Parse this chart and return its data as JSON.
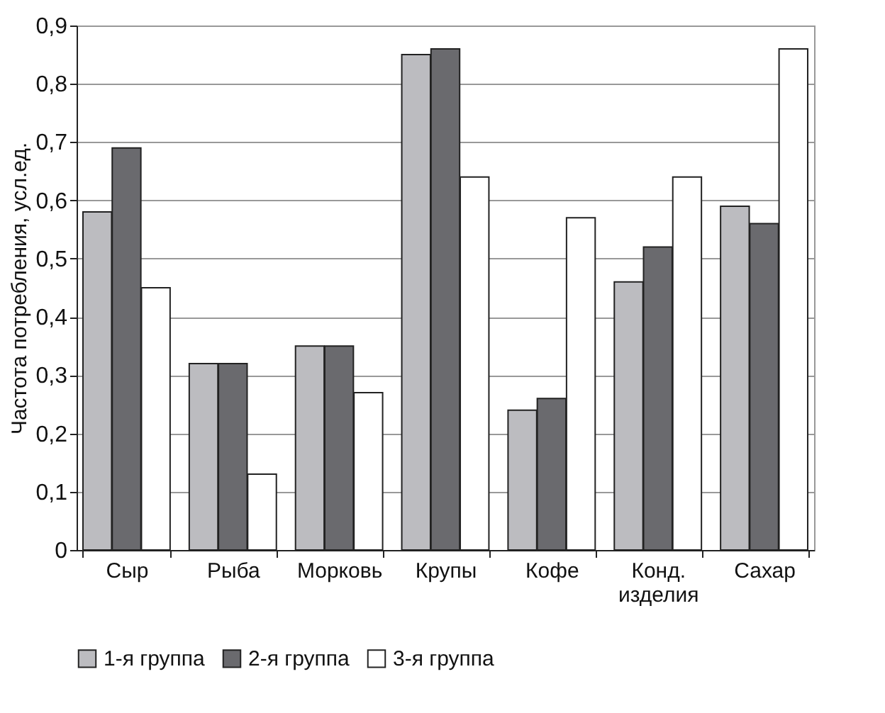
{
  "chart_data": {
    "type": "bar",
    "ylabel": "Частота потребления, усл.ед.",
    "categories": [
      "Сыр",
      "Рыба",
      "Морковь",
      "Крупы",
      "Кофе",
      "Конд. изделия",
      "Сахар"
    ],
    "series": [
      {
        "name": "1-я группа",
        "color": "#bcbcc0",
        "values": [
          0.58,
          0.32,
          0.35,
          0.85,
          0.24,
          0.46,
          0.59
        ]
      },
      {
        "name": "2-я группа",
        "color": "#6a6a6e",
        "values": [
          0.69,
          0.32,
          0.35,
          0.86,
          0.26,
          0.52,
          0.56
        ]
      },
      {
        "name": "3-я группа",
        "color": "#ffffff",
        "values": [
          0.45,
          0.13,
          0.27,
          0.64,
          0.57,
          0.64,
          0.86
        ]
      }
    ],
    "ylim": [
      0,
      0.9
    ],
    "yticks": [
      {
        "value": 0,
        "label": "0"
      },
      {
        "value": 0.1,
        "label": "0,1"
      },
      {
        "value": 0.2,
        "label": "0,2"
      },
      {
        "value": 0.3,
        "label": "0,3"
      },
      {
        "value": 0.4,
        "label": "0,4"
      },
      {
        "value": 0.5,
        "label": "0,5"
      },
      {
        "value": 0.6,
        "label": "0,6"
      },
      {
        "value": 0.7,
        "label": "0,7"
      },
      {
        "value": 0.8,
        "label": "0,8"
      },
      {
        "value": 0.9,
        "label": "0,9"
      }
    ],
    "grid": "y",
    "legend": "bottom"
  }
}
